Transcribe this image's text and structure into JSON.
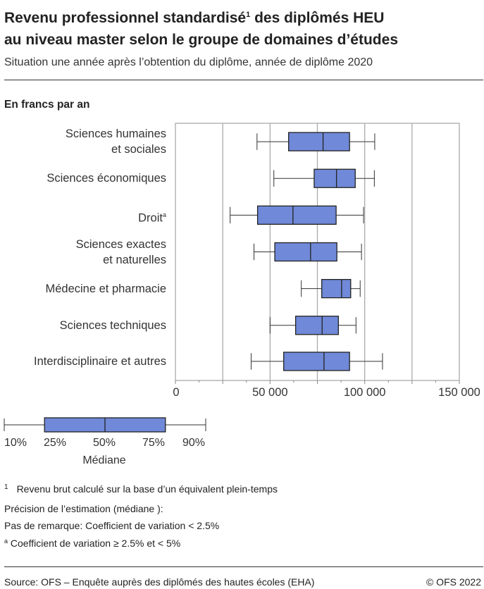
{
  "title_line1": "Revenu professionnel standardisé",
  "title_sup": "1",
  "title_line1b": " des diplômés HEU",
  "title_line2": "au niveau master selon le groupe de domaines d’études",
  "subtitle": "Situation une année après l’obtention du diplôme, année de diplôme 2020",
  "unit": "En francs par an",
  "chart_data": {
    "type": "boxplot",
    "orientation": "horizontal",
    "categories": [
      {
        "line1": "Sciences humaines",
        "line2": "et sociales"
      },
      {
        "line1": "Sciences économiques",
        "line2": ""
      },
      {
        "line1": "Droit",
        "line2": "",
        "note": "a"
      },
      {
        "line1": "Sciences exactes",
        "line2": "et naturelles"
      },
      {
        "line1": "Médecine et pharmacie",
        "line2": ""
      },
      {
        "line1": "Sciences techniques",
        "line2": ""
      },
      {
        "line1": "Interdisciplinaire et autres",
        "line2": ""
      }
    ],
    "stats_order": [
      "p10",
      "p25",
      "median",
      "p75",
      "p90"
    ],
    "values": [
      [
        43100,
        59800,
        78000,
        92000,
        105300
      ],
      [
        52000,
        73300,
        85100,
        95000,
        105100
      ],
      [
        28900,
        43400,
        62100,
        84900,
        99400
      ],
      [
        41500,
        52500,
        71400,
        85300,
        98300
      ],
      [
        66500,
        77300,
        87800,
        92600,
        97600
      ],
      [
        50000,
        63500,
        77500,
        86100,
        95400
      ],
      [
        40000,
        57200,
        78500,
        92000,
        109400
      ]
    ],
    "xlim": [
      0,
      150000
    ],
    "xticks": [
      0,
      50000,
      100000,
      150000
    ],
    "xtick_labels": [
      "0",
      "50 000",
      "100 000",
      "150 000"
    ],
    "grid_step": 25000,
    "grid": true,
    "box_color": "#7089d8",
    "line_color": "#222222"
  },
  "legend": {
    "labels": [
      "10%",
      "25%",
      "50%",
      "75%",
      "90%"
    ],
    "median_label": "Médiane"
  },
  "footnotes": {
    "fn1_mark": "1",
    "fn1": "Revenu brut calculé sur la base d’un équivalent plein-temps",
    "precision": "Précision de l’estimation (médiane ):",
    "none": "Pas de remarque: Coefficient de variation < 2.5%",
    "a_mark": "a",
    "a": " Coefficient de variation ≥ 2.5% et < 5%"
  },
  "source": "Source: OFS – Enquête auprès des diplômés des hautes écoles (EHA)",
  "copyright": "© OFS 2022"
}
